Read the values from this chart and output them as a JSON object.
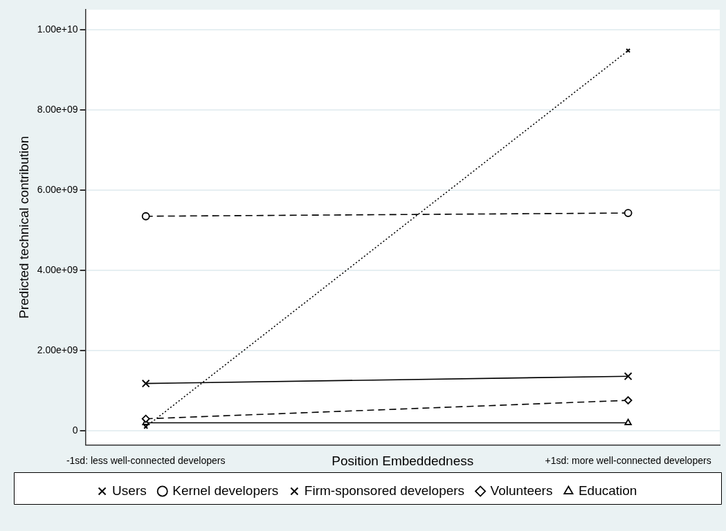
{
  "chart_data": {
    "type": "line",
    "xlabel": "Position Embeddedness",
    "ylabel": "Predicted technical contribution",
    "categories": [
      "-1sd: less well-connected developers",
      "+1sd: more well-connected developers"
    ],
    "series": [
      {
        "name": "Users",
        "color": "#000000",
        "values": [
          100000000,
          9480000000
        ],
        "marker": "cross",
        "line_style": "dotted"
      },
      {
        "name": "Kernel developers",
        "color": "#000000",
        "values": [
          5350000000,
          5430000000
        ],
        "marker": "circle",
        "line_style": "dashed"
      },
      {
        "name": "Firm-sponsored developers",
        "color": "#000000",
        "values": [
          1180000000,
          1360000000
        ],
        "marker": "cross",
        "line_style": "solid"
      },
      {
        "name": "Volunteers",
        "color": "#000000",
        "values": [
          300000000,
          760000000
        ],
        "marker": "diamond",
        "line_style": "dashed"
      },
      {
        "name": "Education",
        "color": "#000000",
        "values": [
          200000000,
          200000000
        ],
        "marker": "triangle",
        "line_style": "solid"
      }
    ],
    "ylim": [
      -350000000,
      10500000000
    ],
    "yticks": [
      0,
      {
        "value": 2000000000,
        "label": "2.00e+09"
      },
      {
        "value": 4000000000,
        "label": "4.00e+09"
      },
      {
        "value": 6000000000,
        "label": "6.00e+09"
      },
      {
        "value": 8000000000,
        "label": "8.00e+09"
      },
      {
        "value": 10000000000,
        "label": "1.00e+10"
      }
    ],
    "grid": "y",
    "legend": "bottom"
  }
}
